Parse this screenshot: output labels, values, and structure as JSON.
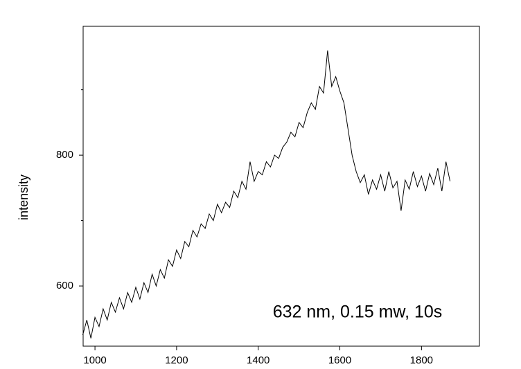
{
  "chart_data": {
    "type": "line",
    "y_label": "intensity",
    "annotation": "632 nm, 0.15 mw, 10s",
    "x": [
      970,
      980,
      990,
      1000,
      1010,
      1020,
      1030,
      1040,
      1050,
      1060,
      1070,
      1080,
      1090,
      1100,
      1110,
      1120,
      1130,
      1140,
      1150,
      1160,
      1170,
      1180,
      1190,
      1200,
      1210,
      1220,
      1230,
      1240,
      1250,
      1260,
      1270,
      1280,
      1290,
      1300,
      1310,
      1320,
      1330,
      1340,
      1350,
      1360,
      1370,
      1380,
      1390,
      1400,
      1410,
      1420,
      1430,
      1440,
      1450,
      1460,
      1470,
      1480,
      1490,
      1500,
      1510,
      1520,
      1530,
      1540,
      1550,
      1560,
      1570,
      1580,
      1590,
      1600,
      1610,
      1620,
      1630,
      1640,
      1650,
      1660,
      1670,
      1680,
      1690,
      1700,
      1710,
      1720,
      1730,
      1740,
      1750,
      1760,
      1770,
      1780,
      1790,
      1800,
      1810,
      1820,
      1830,
      1840,
      1850,
      1860,
      1870
    ],
    "series": [
      {
        "color": "#000000",
        "values": [
          525,
          548,
          520,
          552,
          538,
          565,
          548,
          575,
          560,
          582,
          565,
          590,
          575,
          598,
          580,
          605,
          590,
          618,
          600,
          625,
          612,
          640,
          630,
          655,
          642,
          668,
          660,
          685,
          675,
          695,
          688,
          710,
          700,
          725,
          712,
          728,
          720,
          745,
          735,
          760,
          748,
          790,
          760,
          775,
          770,
          790,
          782,
          800,
          795,
          812,
          820,
          835,
          828,
          850,
          842,
          865,
          880,
          870,
          905,
          895,
          960,
          905,
          920,
          898,
          880,
          840,
          800,
          775,
          758,
          770,
          740,
          762,
          748,
          770,
          745,
          775,
          750,
          760,
          715,
          762,
          748,
          775,
          752,
          768,
          745,
          772,
          755,
          780,
          745,
          790,
          760
        ]
      }
    ],
    "xlim": [
      971,
      1942
    ],
    "xticks": [
      1000,
      1200,
      1400,
      1600,
      1800
    ],
    "ylim": [
      508,
      997
    ],
    "yticks": [
      600,
      800
    ],
    "yminor": [
      700,
      900
    ]
  }
}
